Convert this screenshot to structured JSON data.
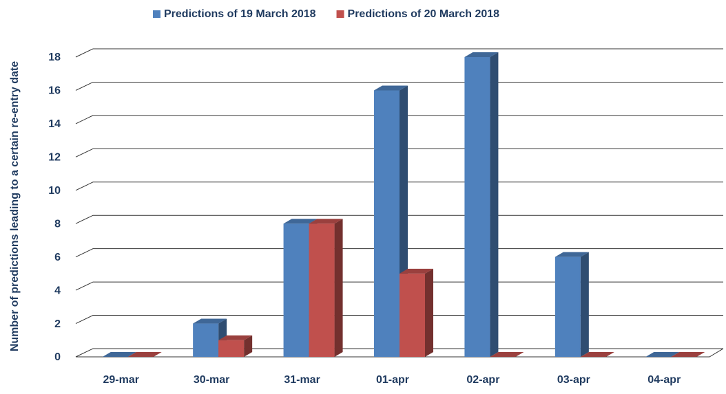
{
  "chart_data": {
    "type": "bar3d",
    "y_label": "Number of predictions leading to a certain re-entry date",
    "categories": [
      "29-mar",
      "30-mar",
      "31-mar",
      "01-apr",
      "02-apr",
      "03-apr",
      "04-apr"
    ],
    "series": [
      {
        "name": "Predictions of 19 March 2018",
        "color": "#4f81bd",
        "values": [
          0,
          2,
          8,
          16,
          18,
          6,
          0
        ]
      },
      {
        "name": "Predictions of 20 March 2018",
        "color": "#c0504d",
        "values": [
          0,
          1,
          8,
          5,
          0,
          0,
          0
        ]
      }
    ],
    "ylim": [
      0,
      18
    ],
    "yticks": [
      0,
      2,
      4,
      6,
      8,
      10,
      12,
      14,
      16,
      18
    ],
    "grid": true
  }
}
